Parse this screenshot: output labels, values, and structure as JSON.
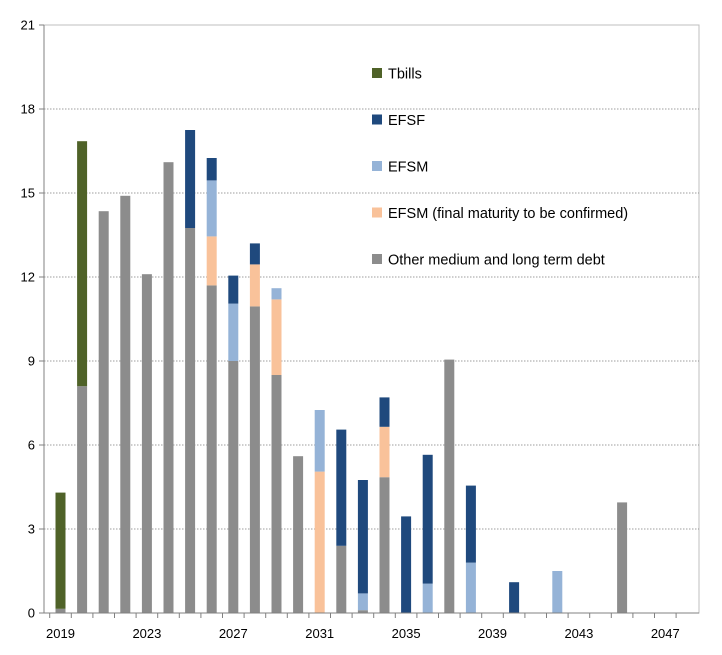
{
  "chart_data": {
    "type": "bar",
    "stacked": true,
    "title": "",
    "xlabel": "",
    "ylabel": "",
    "ylim": [
      0,
      21
    ],
    "y_ticks": [
      0,
      3,
      6,
      9,
      12,
      15,
      18,
      21
    ],
    "x_tick_labels": [
      "2019",
      "2023",
      "2027",
      "2031",
      "2035",
      "2039",
      "2043",
      "2047"
    ],
    "grid": "horizontal dotted",
    "legend_position": "inside top-right",
    "categories": [
      2019,
      2020,
      2021,
      2022,
      2023,
      2024,
      2025,
      2026,
      2027,
      2028,
      2029,
      2030,
      2031,
      2032,
      2033,
      2034,
      2035,
      2036,
      2037,
      2038,
      2039,
      2040,
      2041,
      2042,
      2043,
      2044,
      2045,
      2046,
      2047
    ],
    "series": [
      {
        "name": "Other medium and long term debt",
        "color": "#8c8c8c",
        "values": [
          0.15,
          8.1,
          14.35,
          14.9,
          12.1,
          16.1,
          13.75,
          11.7,
          9.0,
          10.95,
          8.5,
          5.6,
          0,
          2.4,
          0.1,
          4.85,
          0,
          0,
          9.05,
          0,
          0,
          0,
          0,
          0,
          0,
          0,
          3.95,
          0,
          0
        ]
      },
      {
        "name": "EFSM (final maturity to be confirmed)",
        "color": "#f9c29a",
        "values": [
          0,
          0,
          0,
          0,
          0,
          0,
          0,
          1.75,
          0,
          1.5,
          2.7,
          0,
          5.05,
          0,
          0,
          1.8,
          0,
          0,
          0,
          0,
          0,
          0,
          0,
          0,
          0,
          0,
          0,
          0,
          0
        ]
      },
      {
        "name": "EFSM",
        "color": "#95b3d7",
        "values": [
          0,
          0,
          0,
          0,
          0,
          0,
          0,
          2.0,
          2.05,
          0,
          0.4,
          0,
          2.2,
          0,
          0.6,
          0,
          0,
          1.05,
          0,
          1.8,
          0,
          0,
          0,
          1.5,
          0,
          0,
          0,
          0,
          0
        ]
      },
      {
        "name": "EFSF",
        "color": "#1f497d",
        "values": [
          0,
          0,
          0,
          0,
          0,
          0,
          3.5,
          0.8,
          1.0,
          0.75,
          0,
          0,
          0,
          4.15,
          4.05,
          1.05,
          3.45,
          4.6,
          0,
          2.75,
          0,
          1.1,
          0,
          0,
          0,
          0,
          0,
          0,
          0
        ]
      },
      {
        "name": "Tbills",
        "color": "#4f6228",
        "values": [
          4.15,
          8.75,
          0,
          0,
          0,
          0,
          0,
          0,
          0,
          0,
          0,
          0,
          0,
          0,
          0,
          0,
          0,
          0,
          0,
          0,
          0,
          0,
          0,
          0,
          0,
          0,
          0,
          0,
          0
        ]
      }
    ],
    "legend_order": [
      "Tbills",
      "EFSF",
      "EFSM",
      "EFSM (final maturity to be confirmed)",
      "Other medium and long term debt"
    ]
  }
}
